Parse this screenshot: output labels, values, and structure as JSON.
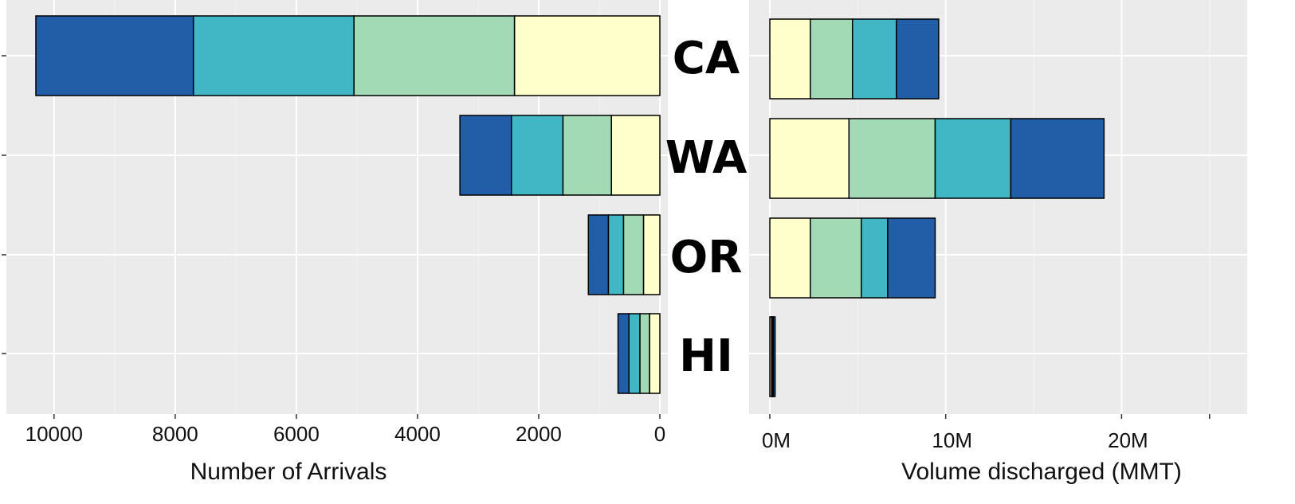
{
  "chart_data": [
    {
      "type": "bar",
      "orientation": "horizontal",
      "stacked": true,
      "x_reversed": true,
      "xlabel": "Number of Arrivals",
      "ylabel": "",
      "xlim": [
        0,
        10800
      ],
      "xticks": [
        10000,
        8000,
        6000,
        4000,
        2000,
        0
      ],
      "grid": true,
      "categories": [
        "CA",
        "WA",
        "OR",
        "HI"
      ],
      "segments_order": "inner to outer",
      "segment_colors": [
        "#FFFFCC",
        "#A1DAB4",
        "#41B6C4",
        "#225EA8"
      ],
      "series": [
        {
          "values": [
            2400,
            800,
            270,
            170
          ]
        },
        {
          "values": [
            2650,
            800,
            330,
            160
          ]
        },
        {
          "values": [
            2650,
            850,
            250,
            180
          ]
        },
        {
          "values": [
            2600,
            850,
            330,
            180
          ]
        }
      ]
    },
    {
      "type": "bar",
      "orientation": "horizontal",
      "stacked": true,
      "xlabel": "Volume discharged (MMT)",
      "ylabel": "",
      "xlim": [
        0,
        27
      ],
      "xticks": [
        0,
        10,
        20
      ],
      "xtick_labels": [
        "0M",
        "10M",
        "20M"
      ],
      "grid": true,
      "categories": [
        "CA",
        "WA",
        "OR",
        "HI"
      ],
      "segments_order": "inner to outer",
      "segment_colors": [
        "#FFFFCC",
        "#A1DAB4",
        "#41B6C4",
        "#225EA8"
      ],
      "series": [
        {
          "values": [
            2.3,
            4.5,
            2.3,
            0.1
          ]
        },
        {
          "values": [
            2.4,
            4.9,
            2.9,
            0.05
          ]
        },
        {
          "values": [
            2.5,
            4.3,
            1.5,
            0.05
          ]
        },
        {
          "values": [
            2.4,
            5.3,
            2.7,
            0.1
          ]
        }
      ]
    }
  ]
}
